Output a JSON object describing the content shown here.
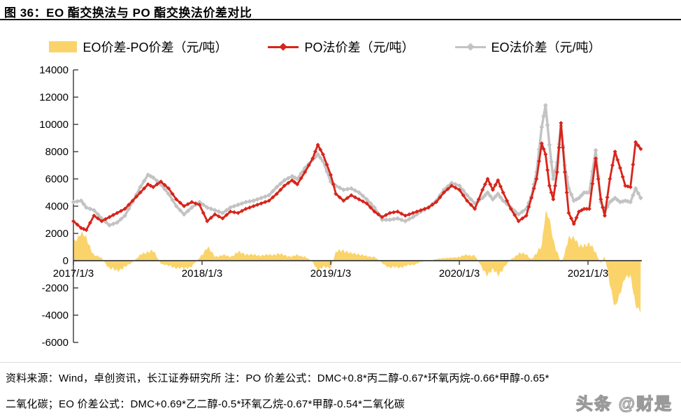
{
  "title": {
    "text": "图  36：EO 酯交换法与 PO 酯交换法价差对比"
  },
  "legend": {
    "items": [
      {
        "label": "EO价差-PO价差（元/吨）",
        "swatch": "bar",
        "color": "#FAD46B"
      },
      {
        "label": "PO法价差（元/吨）",
        "swatch": "line-marker",
        "color": "#D7251B"
      },
      {
        "label": "EO法价差（元/吨）",
        "swatch": "line-marker",
        "color": "#C3C3C3"
      }
    ]
  },
  "footer": {
    "line1": "资料来源：Wind，卓创资讯，长江证券研究所  注：PO 价差公式：DMC+0.8*丙二醇-0.67*环氧丙烷-0.66*甲醇-0.65*",
    "line2": "二氧化碳；EO 价差公式：DMC+0.69*乙二醇-0.5*环氧乙烷-0.67*甲醇-0.54*二氧化碳",
    "watermark": "头条 @财是"
  },
  "chart_data": {
    "type": "combo",
    "title": "EO 酯交换法与 PO 酯交换法价差对比",
    "xlabel": "",
    "ylabel": "元/吨",
    "ylim": [
      -6000,
      14000
    ],
    "grid": false,
    "legend_position": "top",
    "y_ticks": [
      14000,
      12000,
      10000,
      8000,
      6000,
      4000,
      2000,
      0,
      -2000,
      -4000,
      -6000
    ],
    "x_ticks": [
      {
        "t": 2017,
        "label": "2017/1/3"
      },
      {
        "t": 2018,
        "label": "2018/1/3"
      },
      {
        "t": 2019,
        "label": "2019/1/3"
      },
      {
        "t": 2020,
        "label": "2020/1/3"
      },
      {
        "t": 2021,
        "label": "2021/1/3"
      }
    ],
    "x_unit": "decimal_year",
    "x": [
      2017.0,
      2017.06,
      2017.1,
      2017.16,
      2017.22,
      2017.28,
      2017.34,
      2017.4,
      2017.46,
      2017.52,
      2017.58,
      2017.62,
      2017.68,
      2017.74,
      2017.8,
      2017.86,
      2017.92,
      2017.98,
      2018.04,
      2018.1,
      2018.16,
      2018.22,
      2018.28,
      2018.34,
      2018.4,
      2018.46,
      2018.52,
      2018.58,
      2018.64,
      2018.7,
      2018.74,
      2018.8,
      2018.86,
      2018.9,
      2018.94,
      2019.0,
      2019.04,
      2019.1,
      2019.16,
      2019.22,
      2019.28,
      2019.34,
      2019.4,
      2019.46,
      2019.52,
      2019.58,
      2019.64,
      2019.7,
      2019.76,
      2019.82,
      2019.88,
      2019.94,
      2020.0,
      2020.06,
      2020.12,
      2020.18,
      2020.22,
      2020.26,
      2020.3,
      2020.34,
      2020.4,
      2020.46,
      2020.52,
      2020.56,
      2020.6,
      2020.64,
      2020.67,
      2020.7,
      2020.73,
      2020.76,
      2020.79,
      2020.82,
      2020.85,
      2020.89,
      2020.93,
      2020.97,
      2021.01,
      2021.06,
      2021.1,
      2021.13,
      2021.17,
      2021.21,
      2021.25,
      2021.29,
      2021.33,
      2021.37,
      2021.41
    ],
    "series": [
      {
        "name": "PO法价差（元/吨）",
        "type": "line",
        "color": "#D7251B",
        "values": [
          2900,
          2400,
          2250,
          3300,
          2900,
          3200,
          3500,
          3800,
          4400,
          5000,
          5600,
          5400,
          5800,
          5300,
          4500,
          4000,
          4300,
          4100,
          2900,
          3400,
          3100,
          3600,
          3500,
          3800,
          4000,
          4200,
          4400,
          4900,
          5500,
          5900,
          5600,
          6500,
          7500,
          8500,
          7800,
          6300,
          4900,
          4400,
          4800,
          4500,
          4200,
          3600,
          3200,
          3500,
          3600,
          3300,
          3500,
          3700,
          3900,
          4300,
          5000,
          5500,
          5200,
          4400,
          3800,
          5200,
          6000,
          5200,
          5900,
          5000,
          3800,
          2900,
          3300,
          4600,
          6000,
          8600,
          7800,
          5500,
          4500,
          6500,
          10100,
          6500,
          3500,
          2700,
          3600,
          3800,
          3800,
          7500,
          4500,
          3300,
          6000,
          8000,
          6800,
          5500,
          5400,
          8700,
          8200
        ]
      },
      {
        "name": "EO法价差（元/吨）",
        "type": "line",
        "color": "#C3C3C3",
        "values": [
          4300,
          4400,
          3900,
          3700,
          3100,
          2600,
          2800,
          3300,
          4300,
          5400,
          6300,
          6100,
          5600,
          4900,
          4000,
          3400,
          3900,
          4300,
          3900,
          3700,
          3500,
          3900,
          4100,
          4300,
          4400,
          4600,
          4800,
          5400,
          5900,
          6200,
          6000,
          6800,
          7400,
          7800,
          7300,
          5800,
          5500,
          5200,
          5300,
          5000,
          4500,
          3900,
          3000,
          3000,
          3100,
          2900,
          3200,
          3600,
          3900,
          4400,
          5200,
          5700,
          5500,
          4800,
          4200,
          4600,
          5000,
          4500,
          4900,
          4400,
          3900,
          3400,
          3800,
          4700,
          6500,
          9800,
          11400,
          8500,
          6000,
          7200,
          9900,
          7000,
          5300,
          4400,
          4600,
          5000,
          5000,
          8100,
          4300,
          3600,
          4300,
          4600,
          4300,
          4400,
          4300,
          5300,
          4600
        ]
      },
      {
        "name": "EO价差-PO价差（元/吨）",
        "type": "bar",
        "color": "#FAD46B",
        "derived": "EO法价差 - PO法价差",
        "values": [
          1400,
          2000,
          1650,
          400,
          200,
          -600,
          -700,
          -500,
          -100,
          400,
          700,
          700,
          -200,
          -400,
          -500,
          -600,
          -400,
          200,
          1000,
          300,
          400,
          300,
          600,
          500,
          400,
          400,
          400,
          500,
          400,
          300,
          400,
          300,
          -100,
          -700,
          -500,
          -500,
          600,
          800,
          500,
          500,
          300,
          300,
          -200,
          -500,
          -500,
          -400,
          -300,
          -100,
          0,
          100,
          200,
          200,
          300,
          400,
          400,
          -600,
          -1000,
          -700,
          -1000,
          -600,
          100,
          500,
          500,
          100,
          500,
          1200,
          3600,
          3000,
          1500,
          700,
          -200,
          500,
          1800,
          1700,
          1000,
          1200,
          1200,
          600,
          -200,
          300,
          -1700,
          -3400,
          -2500,
          -1100,
          -1100,
          -3400,
          -3600
        ]
      }
    ]
  }
}
